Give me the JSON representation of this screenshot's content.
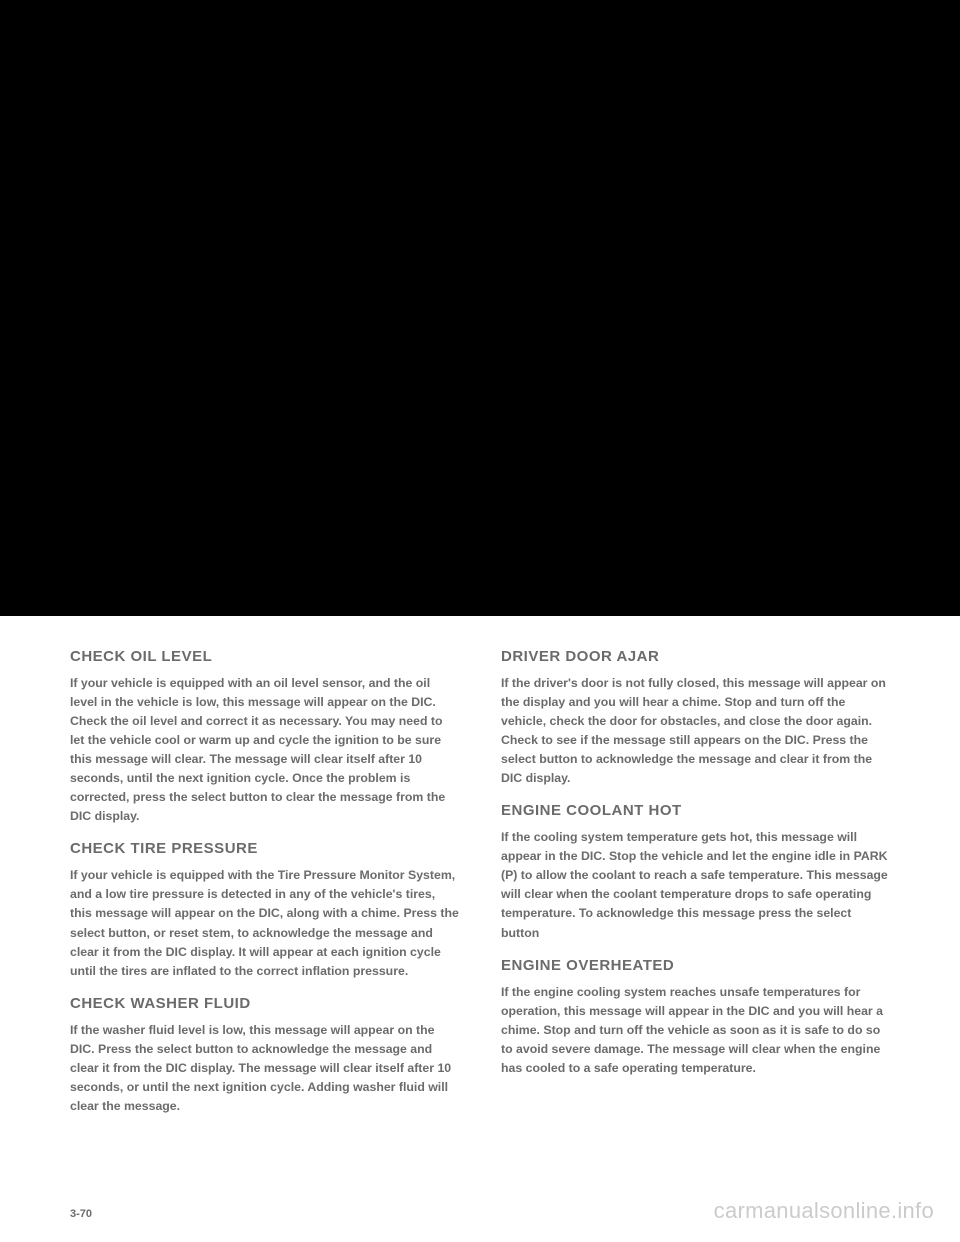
{
  "left_column": {
    "sections": [
      {
        "heading": "CHECK OIL LEVEL",
        "body": "If your vehicle is equipped with an oil level sensor, and the oil level in the vehicle is low, this message will appear on the DIC. Check the oil level and correct it as necessary. You may need to let the vehicle cool or warm up and cycle the ignition to be sure this message will clear. The message will clear itself after 10 seconds, until the next ignition cycle. Once the problem is corrected, press the select button to clear the message from the DIC display."
      },
      {
        "heading": "CHECK TIRE PRESSURE",
        "body": "If your vehicle is equipped with the Tire Pressure Monitor System, and a low tire pressure is detected in any of the vehicle's tires, this message will appear on the DIC, along with a chime. Press the select button, or reset stem, to acknowledge the message and clear it from the DIC display. It will appear at each ignition cycle until the tires are inflated to the correct inflation pressure."
      },
      {
        "heading": "CHECK WASHER FLUID",
        "body": "If the washer fluid level is low, this message will appear on the DIC. Press the select button to acknowledge the message and clear it from the DIC display. The message will clear itself after 10 seconds, or until the next ignition cycle. Adding washer fluid will clear the message."
      }
    ]
  },
  "right_column": {
    "sections": [
      {
        "heading": "DRIVER DOOR AJAR",
        "body": "If the driver's door is not fully closed, this message will appear on the display and you will hear a chime. Stop and turn off the vehicle, check the door for obstacles, and close the door again. Check to see if the message still appears on the DIC. Press the select button to acknowledge the message and clear it from the DIC display."
      },
      {
        "heading": "ENGINE COOLANT HOT",
        "body": "If the cooling system temperature gets hot, this message will appear in the DIC. Stop the vehicle and let the engine idle in PARK (P) to allow the coolant to reach a safe temperature. This message will clear when the coolant temperature drops to safe operating temperature. To acknowledge this message press the select button"
      },
      {
        "heading": "ENGINE OVERHEATED",
        "body": "If the engine cooling system reaches unsafe temperatures for operation, this message will appear in the DIC and you will hear a chime. Stop and turn off the vehicle as soon as it is safe to do so to avoid severe damage. The message will clear when the engine has cooled to a safe operating temperature."
      }
    ]
  },
  "page_number": "3-70",
  "watermark": "carmanualsonline.info"
}
